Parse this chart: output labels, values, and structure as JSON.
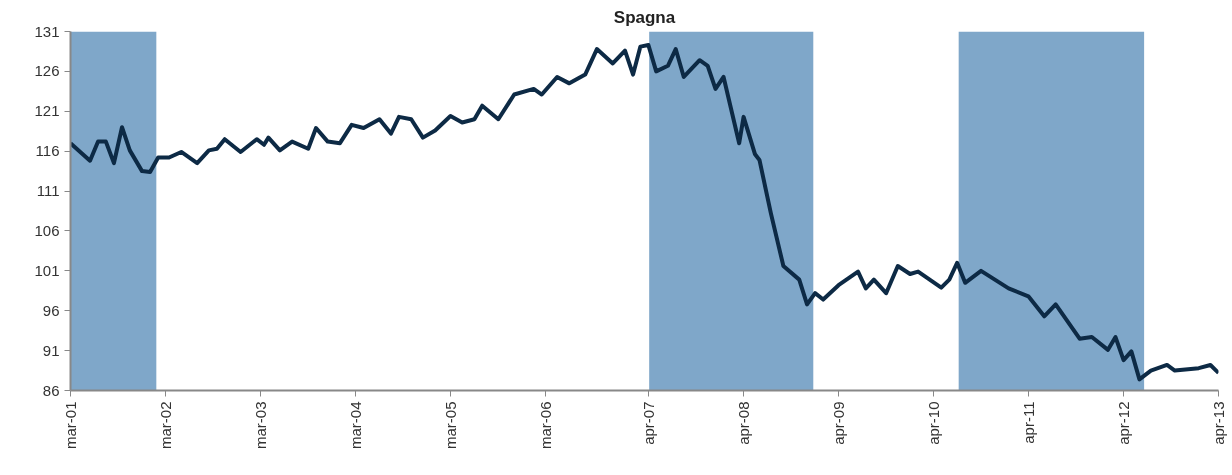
{
  "chart_data": {
    "type": "line",
    "title": "Spagna",
    "x": [
      "2001-03-01",
      "2001-05-15",
      "2001-06-15",
      "2001-07-15",
      "2001-08-15",
      "2001-09-15",
      "2001-10-15",
      "2001-12-01",
      "2002-01-01",
      "2002-02-01",
      "2002-03-15",
      "2002-05-01",
      "2002-07-01",
      "2002-08-15",
      "2002-09-15",
      "2002-10-15",
      "2002-12-15",
      "2003-02-15",
      "2003-03-15",
      "2003-04-01",
      "2003-05-15",
      "2003-07-01",
      "2003-09-01",
      "2003-10-01",
      "2003-11-15",
      "2004-01-01",
      "2004-02-15",
      "2004-04-01",
      "2004-06-01",
      "2004-07-15",
      "2004-08-15",
      "2004-10-01",
      "2004-11-15",
      "2005-01-01",
      "2005-03-01",
      "2005-04-15",
      "2005-06-01",
      "2005-07-01",
      "2005-09-01",
      "2005-11-01",
      "2006-01-15",
      "2006-02-15",
      "2006-04-15",
      "2006-06-01",
      "2006-08-01",
      "2006-09-15",
      "2006-11-15",
      "2007-01-01",
      "2007-02-01",
      "2007-03-01",
      "2007-04-01",
      "2007-05-01",
      "2007-06-15",
      "2007-07-15",
      "2007-08-15",
      "2007-10-15",
      "2007-11-15",
      "2007-12-15",
      "2008-01-15",
      "2008-03-15",
      "2008-04-01",
      "2008-05-15",
      "2008-06-01",
      "2008-07-15",
      "2008-09-01",
      "2008-11-01",
      "2008-12-01",
      "2009-01-01",
      "2009-02-01",
      "2009-04-01",
      "2009-06-15",
      "2009-07-15",
      "2009-08-15",
      "2009-10-01",
      "2009-11-15",
      "2010-01-01",
      "2010-02-01",
      "2010-05-01",
      "2010-06-01",
      "2010-07-01",
      "2010-08-01",
      "2010-10-01",
      "2011-01-15",
      "2011-04-01",
      "2011-06-01",
      "2011-07-15",
      "2011-10-15",
      "2011-12-01",
      "2012-02-01",
      "2012-03-01",
      "2012-04-01",
      "2012-05-01",
      "2012-06-01",
      "2012-07-15",
      "2012-09-15",
      "2012-10-15",
      "2013-01-15",
      "2013-03-01",
      "2013-04-01"
    ],
    "series": [
      {
        "color": "#0d2a45",
        "values": [
          117,
          114.8,
          117.2,
          117.2,
          114.5,
          119,
          116.1,
          113.5,
          113.4,
          115.2,
          115.2,
          115.9,
          114.5,
          116.1,
          116.3,
          117.5,
          115.9,
          117.5,
          116.8,
          117.7,
          116.1,
          117.2,
          116.3,
          118.9,
          117.2,
          117,
          119.3,
          118.9,
          120,
          118.2,
          120.3,
          120,
          117.7,
          118.6,
          120.4,
          119.6,
          120,
          121.7,
          120,
          123.1,
          123.8,
          123.1,
          125.3,
          124.5,
          125.6,
          128.8,
          127,
          128.6,
          125.6,
          129.1,
          129.3,
          126,
          126.7,
          128.8,
          125.3,
          127.4,
          126.7,
          123.8,
          125.3,
          117,
          120.3,
          115.6,
          114.9,
          108.2,
          101.6,
          99.9,
          96.8,
          98.2,
          97.4,
          99.2,
          100.9,
          98.8,
          99.9,
          98.2,
          101.6,
          100.6,
          100.9,
          98.9,
          99.9,
          102,
          99.5,
          101,
          98.8,
          97.8,
          95.3,
          96.8,
          92.5,
          92.7,
          91.1,
          92.7,
          89.8,
          90.9,
          87.4,
          88.5,
          89.2,
          88.5,
          88.8,
          89.2,
          88.2
        ]
      }
    ],
    "xlim": [
      "2001-03-01",
      "2013-04-01"
    ],
    "ylim": [
      86,
      131
    ],
    "xticks": [
      {
        "value": "2001-03",
        "label": "mar-01"
      },
      {
        "value": "2002-03",
        "label": "mar-02"
      },
      {
        "value": "2003-03",
        "label": "mar-03"
      },
      {
        "value": "2004-03",
        "label": "mar-04"
      },
      {
        "value": "2005-03",
        "label": "mar-05"
      },
      {
        "value": "2006-03",
        "label": "mar-06"
      },
      {
        "value": "2007-04",
        "label": "apr-07"
      },
      {
        "value": "2008-04",
        "label": "apr-08"
      },
      {
        "value": "2009-04",
        "label": "apr-09"
      },
      {
        "value": "2010-04",
        "label": "apr-10"
      },
      {
        "value": "2011-04",
        "label": "apr-11"
      },
      {
        "value": "2012-04",
        "label": "apr-12"
      },
      {
        "value": "2013-04",
        "label": "apr-13"
      }
    ],
    "yticks": [
      86,
      91,
      96,
      101,
      106,
      111,
      116,
      121,
      126,
      131
    ],
    "bands": [
      {
        "axis": "x",
        "from": "2001-03-01",
        "to": "2002-01-25",
        "color": "#7fa7c9"
      },
      {
        "axis": "x",
        "from": "2007-04-04",
        "to": "2008-12-25",
        "color": "#7fa7c9"
      },
      {
        "axis": "x",
        "from": "2010-07-07",
        "to": "2012-06-19",
        "color": "#7fa7c9"
      }
    ],
    "line_style": "solid"
  }
}
